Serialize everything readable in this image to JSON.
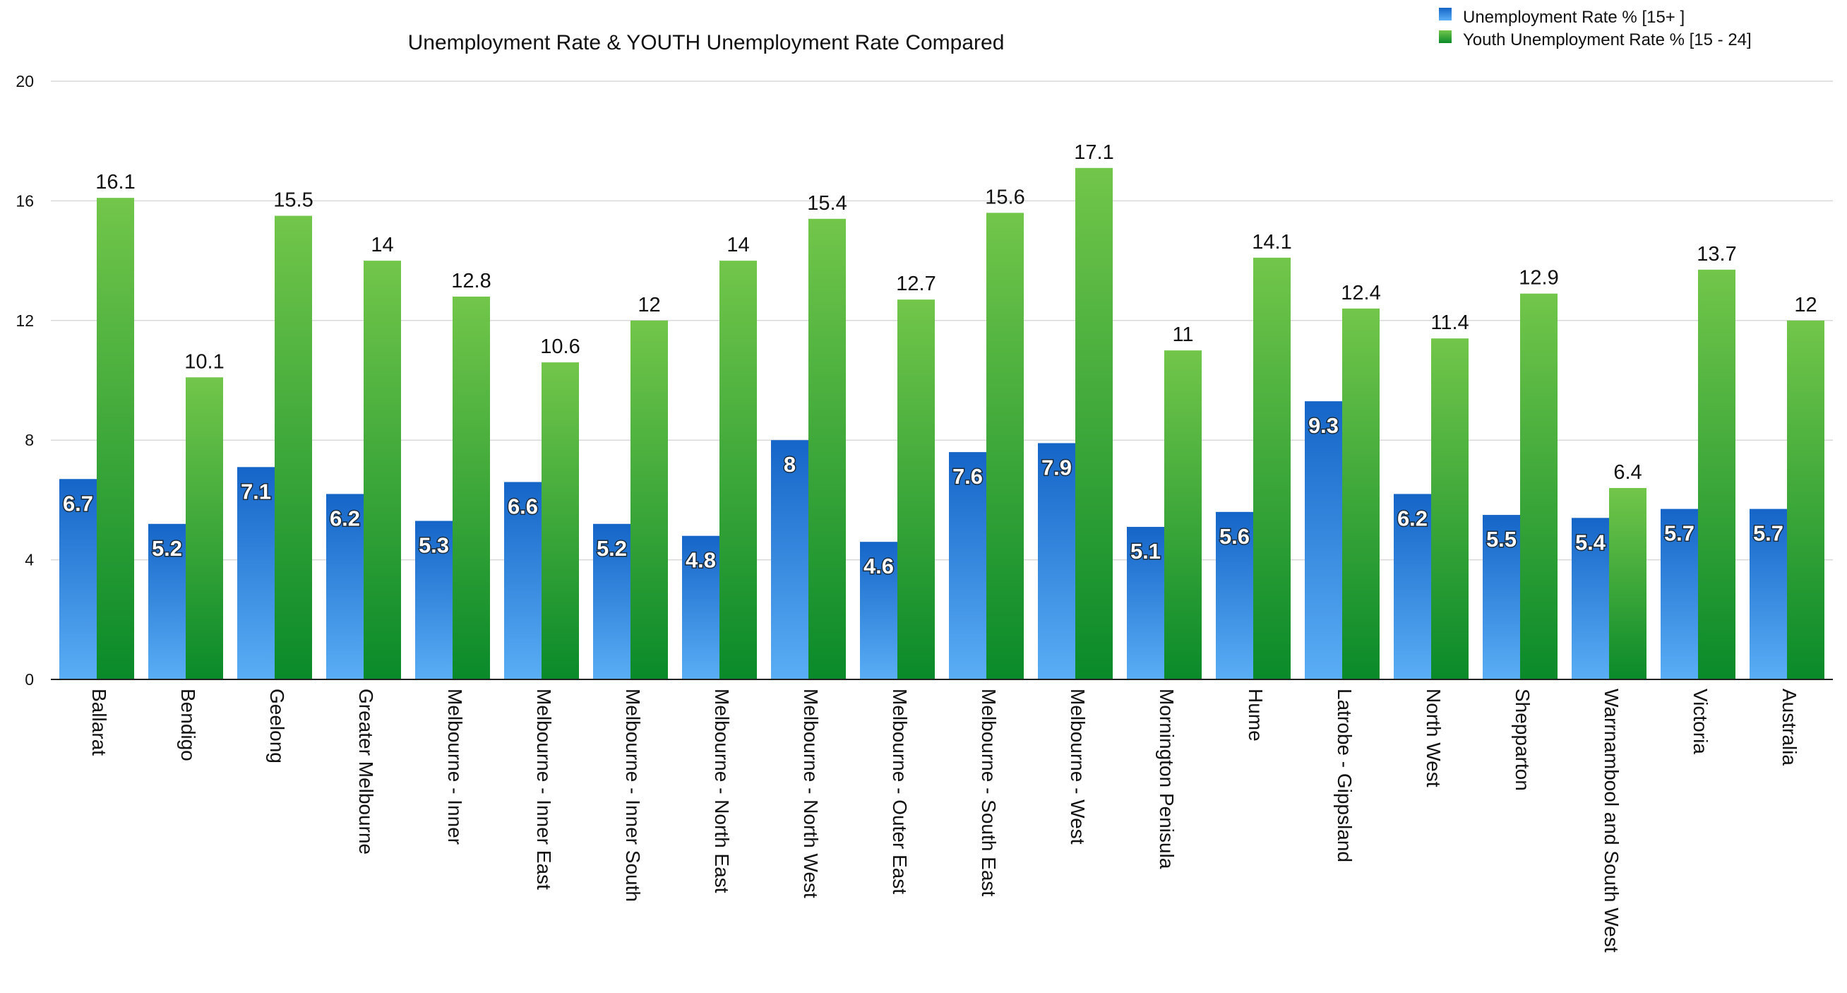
{
  "chart_data": {
    "type": "bar",
    "title": "Unemployment Rate & YOUTH Unemployment Rate Compared",
    "xlabel": "",
    "ylabel": "",
    "ylim": [
      0,
      20
    ],
    "yticks": [
      "0",
      "4",
      "8",
      "12",
      "16",
      "20"
    ],
    "grid": true,
    "legend_position": "top-right",
    "categories": [
      "Ballarat",
      "Bendigo",
      "Geelong",
      "Greater Melbourne",
      "Melbourne - Inner",
      "Melbourne - Inner East",
      "Melbourne - Inner South",
      "Melbourne - North East",
      "Melbourne - North West",
      "Melbourne - Outer East",
      "Melbourne - South East",
      "Melbourne - West",
      "Mornington Penisula",
      "Hume",
      "Latrobe - Gippsland",
      "North West",
      "Shepparton",
      "Warrnambool and South West",
      "Victoria",
      "Australia"
    ],
    "series": [
      {
        "name": "Unemployment Rate % [15+ ]",
        "color": "#2c8ae0",
        "values": [
          6.7,
          5.2,
          7.1,
          6.2,
          5.3,
          6.6,
          5.2,
          4.8,
          8,
          4.6,
          7.6,
          7.9,
          5.1,
          5.6,
          9.3,
          6.2,
          5.5,
          5.4,
          5.7,
          5.7
        ],
        "labels": [
          "6.7",
          "5.2",
          "7.1",
          "6.2",
          "5.3",
          "6.6",
          "5.2",
          "4.8",
          "8",
          "4.6",
          "7.6",
          "7.9",
          "5.1",
          "5.6",
          "9.3",
          "6.2",
          "5.5",
          "5.4",
          "5.7",
          "5.7"
        ]
      },
      {
        "name": "Youth Unemployment Rate % [15 - 24]",
        "color": "#3da73a",
        "values": [
          16.1,
          10.1,
          15.5,
          14,
          12.8,
          10.6,
          12,
          14,
          15.4,
          12.7,
          15.6,
          17.1,
          11,
          14.1,
          12.4,
          11.4,
          12.9,
          6.4,
          13.7,
          12
        ],
        "labels": [
          "16.1",
          "10.1",
          "15.5",
          "14",
          "12.8",
          "10.6",
          "12",
          "14",
          "15.4",
          "12.7",
          "15.6",
          "17.1",
          "11",
          "14.1",
          "12.4",
          "11.4",
          "12.9",
          "6.4",
          "13.7",
          "12"
        ]
      }
    ]
  }
}
